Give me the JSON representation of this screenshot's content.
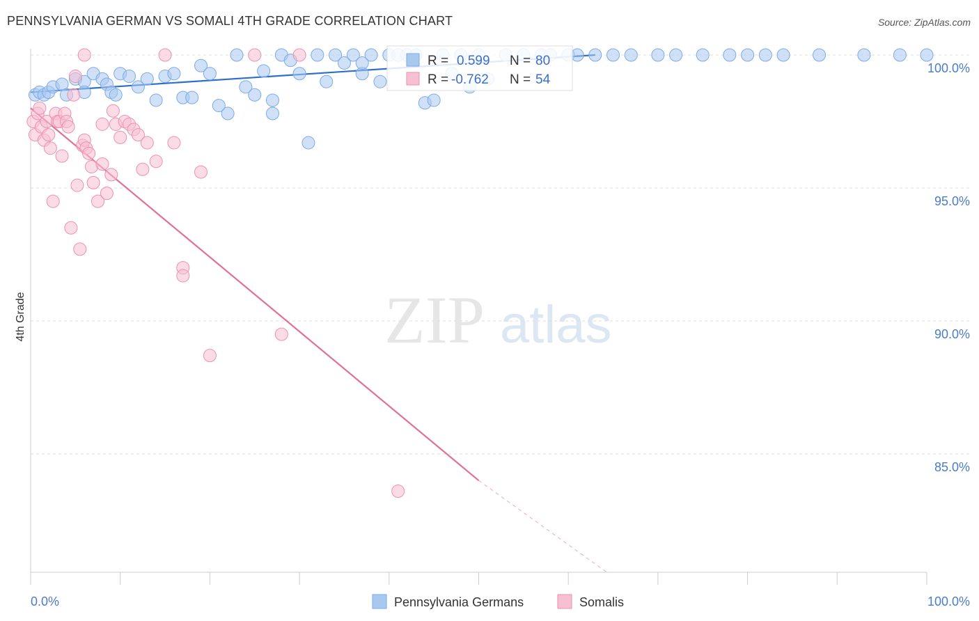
{
  "title": "PENNSYLVANIA GERMAN VS SOMALI 4TH GRADE CORRELATION CHART",
  "source": "Source: ZipAtlas.com",
  "watermark": {
    "zip": "ZIP",
    "atlas": "atlas"
  },
  "colors": {
    "blue": "#7aaae8",
    "blue_fill": "#a9c8f0",
    "blue_line": "#2e6fcc",
    "pink": "#ee8fb0",
    "pink_fill": "#f7bfd2",
    "pink_line": "#e0709a",
    "grid": "#dddddd",
    "axis_text": "#4a7cc9"
  },
  "chart_data": {
    "type": "scatter",
    "title": "PENNSYLVANIA GERMAN VS SOMALI 4TH GRADE CORRELATION CHART",
    "xlabel": "",
    "ylabel": "4th Grade",
    "xlim": [
      0,
      100
    ],
    "ylim": [
      80.5,
      100.5
    ],
    "x_tick_labels": [
      "0.0%",
      "100.0%"
    ],
    "y_ticks": [
      100,
      95,
      90,
      85
    ],
    "y_tick_labels": [
      "100.0%",
      "95.0%",
      "90.0%",
      "85.0%"
    ],
    "legend_position": "top-center",
    "series": [
      {
        "name": "Pennsylvania Germans",
        "color": "#7aaae8",
        "R": "0.599",
        "N": "80",
        "trend": {
          "x": [
            0,
            63
          ],
          "y": [
            98.6,
            100.0
          ]
        },
        "points": [
          [
            0.5,
            98.5
          ],
          [
            1,
            98.6
          ],
          [
            1.5,
            98.5
          ],
          [
            2,
            98.6
          ],
          [
            2.5,
            98.8
          ],
          [
            3.5,
            98.9
          ],
          [
            4,
            98.5
          ],
          [
            5,
            99.1
          ],
          [
            6,
            99.0
          ],
          [
            6,
            98.6
          ],
          [
            7,
            99.3
          ],
          [
            8,
            99.1
          ],
          [
            8.5,
            98.9
          ],
          [
            9,
            98.6
          ],
          [
            9.5,
            98.5
          ],
          [
            10,
            99.3
          ],
          [
            11,
            99.2
          ],
          [
            12,
            98.8
          ],
          [
            13,
            99.1
          ],
          [
            14,
            98.3
          ],
          [
            15,
            99.2
          ],
          [
            16,
            99.3
          ],
          [
            17,
            98.4
          ],
          [
            18,
            98.4
          ],
          [
            19,
            99.6
          ],
          [
            20,
            99.3
          ],
          [
            21,
            98.1
          ],
          [
            22,
            97.8
          ],
          [
            23,
            100
          ],
          [
            24,
            98.8
          ],
          [
            25,
            98.5
          ],
          [
            26,
            99.4
          ],
          [
            27,
            97.8
          ],
          [
            27,
            98.3
          ],
          [
            28,
            100
          ],
          [
            29,
            99.8
          ],
          [
            30,
            99.3
          ],
          [
            31,
            96.7
          ],
          [
            32,
            100
          ],
          [
            33,
            99.0
          ],
          [
            34,
            100
          ],
          [
            35,
            99.7
          ],
          [
            36,
            100
          ],
          [
            37,
            99.3
          ],
          [
            37,
            99.7
          ],
          [
            38,
            100
          ],
          [
            39,
            99.0
          ],
          [
            40,
            100
          ],
          [
            41,
            100
          ],
          [
            42,
            100
          ],
          [
            43,
            100
          ],
          [
            44,
            98.2
          ],
          [
            45,
            98.3
          ],
          [
            46,
            100
          ],
          [
            47,
            99.3
          ],
          [
            48,
            100
          ],
          [
            49,
            98.8
          ],
          [
            50,
            100
          ],
          [
            51,
            99.1
          ],
          [
            53,
            100
          ],
          [
            55,
            100
          ],
          [
            57,
            100
          ],
          [
            58,
            100
          ],
          [
            60,
            100
          ],
          [
            61,
            100
          ],
          [
            63,
            100
          ],
          [
            65,
            100
          ],
          [
            67,
            100
          ],
          [
            70,
            100
          ],
          [
            72,
            100
          ],
          [
            75,
            100
          ],
          [
            78,
            100
          ],
          [
            80,
            100
          ],
          [
            82,
            100
          ],
          [
            84,
            100
          ],
          [
            88,
            100
          ],
          [
            93,
            100
          ],
          [
            97,
            100
          ],
          [
            100,
            100
          ],
          [
            43,
            100
          ]
        ]
      },
      {
        "name": "Somalis",
        "color": "#ee8fb0",
        "R": "-0.762",
        "N": "54",
        "trend": {
          "x": [
            0,
            50
          ],
          "y": [
            98.0,
            84.0
          ]
        },
        "trend_dashed": {
          "x": [
            50,
            64.5
          ],
          "y": [
            84.0,
            80.5
          ]
        },
        "points": [
          [
            0.3,
            97.5
          ],
          [
            0.5,
            97.0
          ],
          [
            0.8,
            97.8
          ],
          [
            1,
            98.0
          ],
          [
            1.2,
            97.3
          ],
          [
            1.5,
            96.8
          ],
          [
            1.8,
            97.5
          ],
          [
            2,
            97.0
          ],
          [
            2.2,
            96.5
          ],
          [
            2.5,
            94.5
          ],
          [
            2.8,
            97.8
          ],
          [
            3,
            97.5
          ],
          [
            3.2,
            97.5
          ],
          [
            3.5,
            96.2
          ],
          [
            3.8,
            97.8
          ],
          [
            4,
            97.5
          ],
          [
            4.2,
            97.3
          ],
          [
            4.5,
            93.5
          ],
          [
            4.8,
            98.5
          ],
          [
            5,
            99.2
          ],
          [
            5.2,
            95.1
          ],
          [
            5.5,
            92.7
          ],
          [
            5.8,
            96.6
          ],
          [
            6,
            96.8
          ],
          [
            6.2,
            96.5
          ],
          [
            6.5,
            96.3
          ],
          [
            6.8,
            95.8
          ],
          [
            7,
            95.2
          ],
          [
            7.5,
            94.5
          ],
          [
            8,
            97.4
          ],
          [
            8.5,
            94.8
          ],
          [
            9,
            95.5
          ],
          [
            9.5,
            97.4
          ],
          [
            10,
            96.9
          ],
          [
            10.5,
            97.5
          ],
          [
            11,
            97.4
          ],
          [
            11.5,
            97.2
          ],
          [
            12,
            97.0
          ],
          [
            12.5,
            95.7
          ],
          [
            13,
            96.7
          ],
          [
            14,
            96.0
          ],
          [
            15,
            100
          ],
          [
            16,
            96.7
          ],
          [
            17,
            92.0
          ],
          [
            17,
            91.7
          ],
          [
            19,
            95.6
          ],
          [
            20,
            88.7
          ],
          [
            25,
            100
          ],
          [
            28,
            89.5
          ],
          [
            30,
            100
          ],
          [
            41,
            83.6
          ],
          [
            6,
            100
          ],
          [
            8,
            95.9
          ],
          [
            9.2,
            97.9
          ]
        ]
      }
    ]
  },
  "legend": {
    "items": [
      {
        "label": "Pennsylvania Germans",
        "color": "#a9c8f0",
        "stroke": "#7aaae8"
      },
      {
        "label": "Somalis",
        "color": "#f7bfd2",
        "stroke": "#ee8fb0"
      }
    ]
  },
  "stats_box": {
    "rows": [
      {
        "r_label": "R =",
        "r_value": "0.599",
        "n_label": "N =",
        "n_value": "80",
        "color": "#a9c8f0",
        "stroke": "#7aaae8"
      },
      {
        "r_label": "R =",
        "r_value": "-0.762",
        "n_label": "N =",
        "n_value": "54",
        "color": "#f7bfd2",
        "stroke": "#ee8fb0"
      }
    ]
  }
}
